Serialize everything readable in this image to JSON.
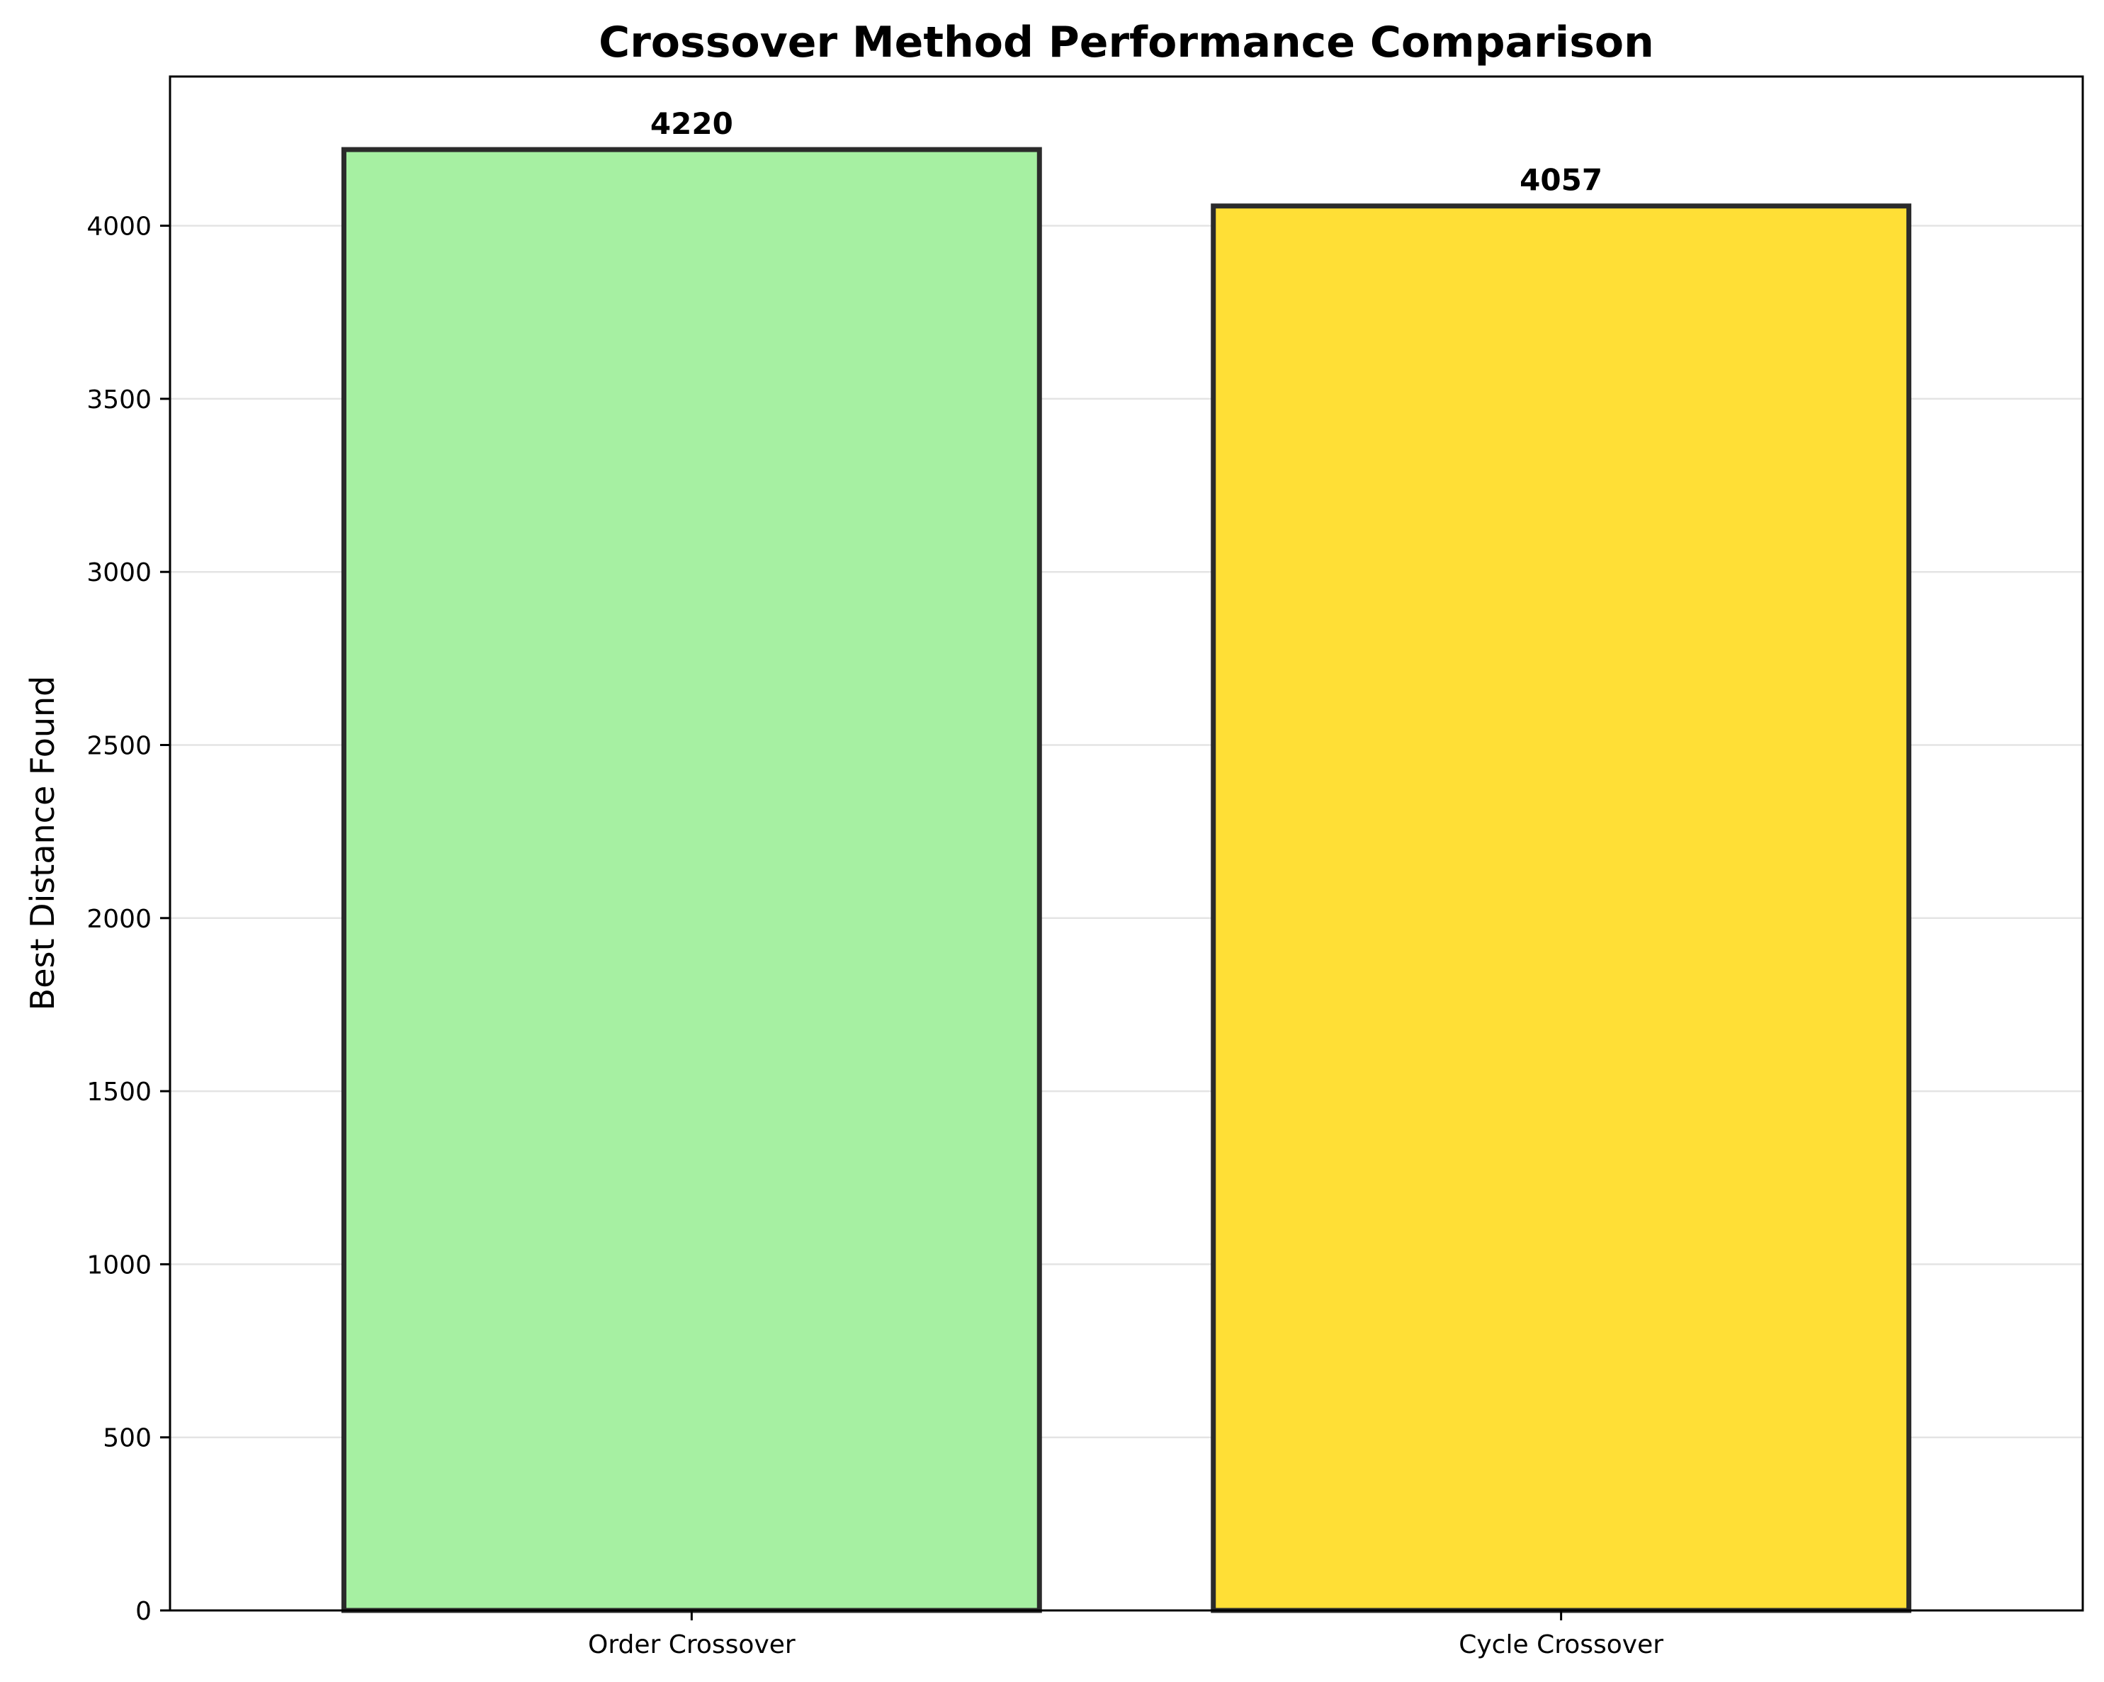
{
  "chart_data": {
    "type": "bar",
    "title": "Crossover Method Performance Comparison",
    "xlabel": "",
    "ylabel": "Best Distance Found",
    "categories": [
      "Order Crossover",
      "Cycle Crossover"
    ],
    "values": [
      4220,
      4057
    ],
    "data_labels": [
      "4220",
      "4057"
    ],
    "bar_colors": [
      "#a6f0a2",
      "#ffdf36"
    ],
    "bar_edge_color": "#2b2b2b",
    "ylim": [
      0,
      4431
    ],
    "yticks": [
      0,
      500,
      1000,
      1500,
      2000,
      2500,
      3000,
      3500,
      4000
    ],
    "ytick_labels": [
      "0",
      "500",
      "1000",
      "1500",
      "2000",
      "2500",
      "3000",
      "3500",
      "4000"
    ],
    "grid": "y",
    "legend": "none"
  }
}
